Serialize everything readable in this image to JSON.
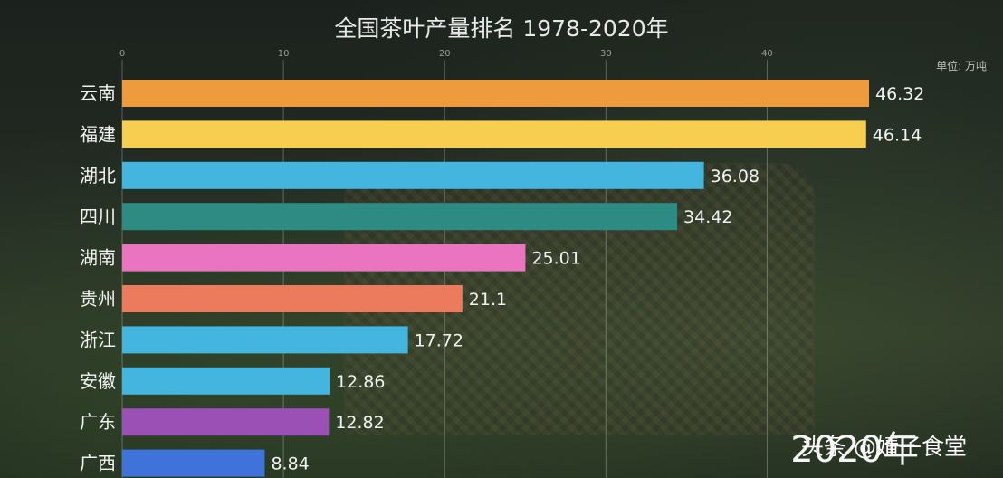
{
  "chart_data": {
    "type": "bar",
    "orientation": "horizontal",
    "title": "全国茶叶产量排名 1978-2020年",
    "unit_label": "单位: 万吨",
    "xlim": [
      0,
      46.32
    ],
    "xticks": [
      "0",
      "10",
      "20",
      "30",
      "40"
    ],
    "categories": [
      "云南",
      "福建",
      "湖北",
      "四川",
      "湖南",
      "贵州",
      "浙江",
      "安徽",
      "广东",
      "广西"
    ],
    "values": [
      46.32,
      46.14,
      36.08,
      34.42,
      25.01,
      21.1,
      17.72,
      12.86,
      12.82,
      8.84
    ],
    "value_labels": [
      "46.32",
      "46.14",
      "36.08",
      "34.42",
      "25.01",
      "21.1",
      "17.72",
      "12.86",
      "12.82",
      "8.84"
    ],
    "colors": [
      "#ee9b3e",
      "#f7ce4f",
      "#43b5de",
      "#2e8b84",
      "#ea74c0",
      "#ec7a5d",
      "#43b5de",
      "#43b5de",
      "#9a50b5",
      "#3f73da"
    ],
    "grid": true
  },
  "year_label": "2020年",
  "watermark": "头条 @婧子食堂"
}
